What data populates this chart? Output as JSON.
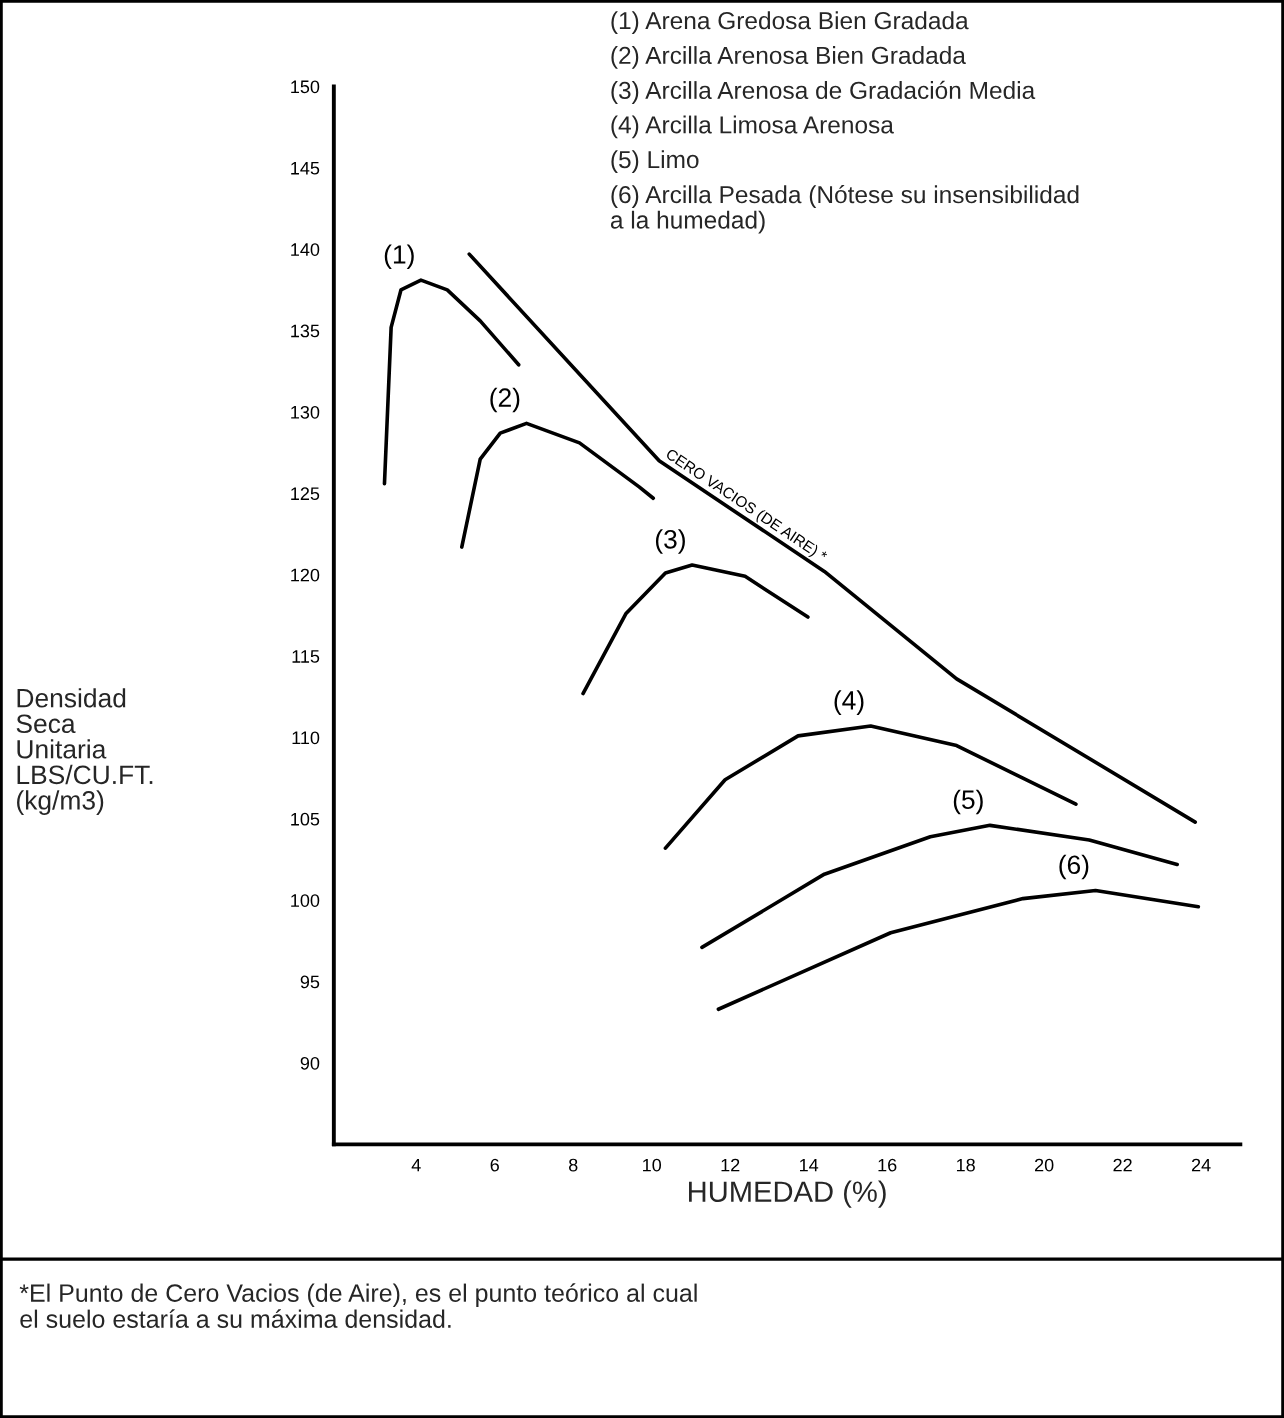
{
  "chart_data": {
    "type": "line",
    "xlabel": "HUMEDAD (%)",
    "xlim": [
      1.9,
      25
    ],
    "ylim": [
      85,
      150
    ],
    "xticks": [
      4,
      6,
      8,
      10,
      12,
      14,
      16,
      18,
      20,
      22,
      24
    ],
    "yticks": [
      90,
      95,
      100,
      105,
      110,
      115,
      120,
      125,
      130,
      135,
      140,
      145,
      150
    ],
    "grid": false,
    "marker": "none",
    "line_style": "solid",
    "series": [
      {
        "name": "(1)",
        "color": "#000000",
        "x": [
          3.19,
          3.36,
          3.61,
          4.12,
          4.79,
          5.63,
          6.61
        ],
        "values": [
          125.6,
          135.2,
          137.5,
          138.1,
          137.5,
          135.6,
          132.9
        ]
      },
      {
        "name": "(2)",
        "color": "#000000",
        "x": [
          5.16,
          5.63,
          6.14,
          6.81,
          8.16,
          9.68,
          10.04
        ],
        "values": [
          121.7,
          127.1,
          128.7,
          129.3,
          128.1,
          125.4,
          124.7
        ]
      },
      {
        "name": "(3)",
        "color": "#000000",
        "x": [
          8.25,
          9.34,
          10.35,
          11.03,
          12.38,
          13.98
        ],
        "values": [
          112.7,
          117.6,
          120.1,
          120.6,
          119.9,
          117.4
        ]
      },
      {
        "name": "(4)",
        "color": "#000000",
        "x": [
          10.35,
          11.87,
          13.73,
          15.58,
          17.77,
          20.81
        ],
        "values": [
          103.2,
          107.4,
          110.1,
          110.7,
          109.5,
          105.9
        ]
      },
      {
        "name": "(5)",
        "color": "#000000",
        "x": [
          11.28,
          14.4,
          17.1,
          18.62,
          21.15,
          23.39
        ],
        "values": [
          97.1,
          101.6,
          103.9,
          104.6,
          103.7,
          102.2
        ]
      },
      {
        "name": "(6)",
        "color": "#000000",
        "x": [
          11.7,
          16.09,
          19.46,
          21.31,
          23.93
        ],
        "values": [
          93.3,
          98.0,
          100.1,
          100.6,
          99.6
        ]
      },
      {
        "name": "CERO VACIOS (DE AIRE) *",
        "color": "#000000",
        "x": [
          5.35,
          10.19,
          14.4,
          17.77,
          23.85
        ],
        "values": [
          139.7,
          127.0,
          120.2,
          113.6,
          104.8
        ]
      }
    ],
    "annotations": [
      "Densidad\nSeca\nUnitaria\nLBS/CU.FT.\n(kg/m3)",
      "(1) Arena Gredosa Bien Gradada",
      "(2) Arcilla Arenosa Bien Gradada",
      "(3) Arcilla Arenosa de Gradación Media",
      "(4) Arcilla Limosa Arenosa",
      "(5) Limo",
      "(6) Arcilla Pesada (Nótese su insensibilidad\na la humedad)",
      "*El Punto de Cero Vacios (de Aire), es el punto teórico al cual\nel suelo estaría a su máxima densidad."
    ]
  }
}
